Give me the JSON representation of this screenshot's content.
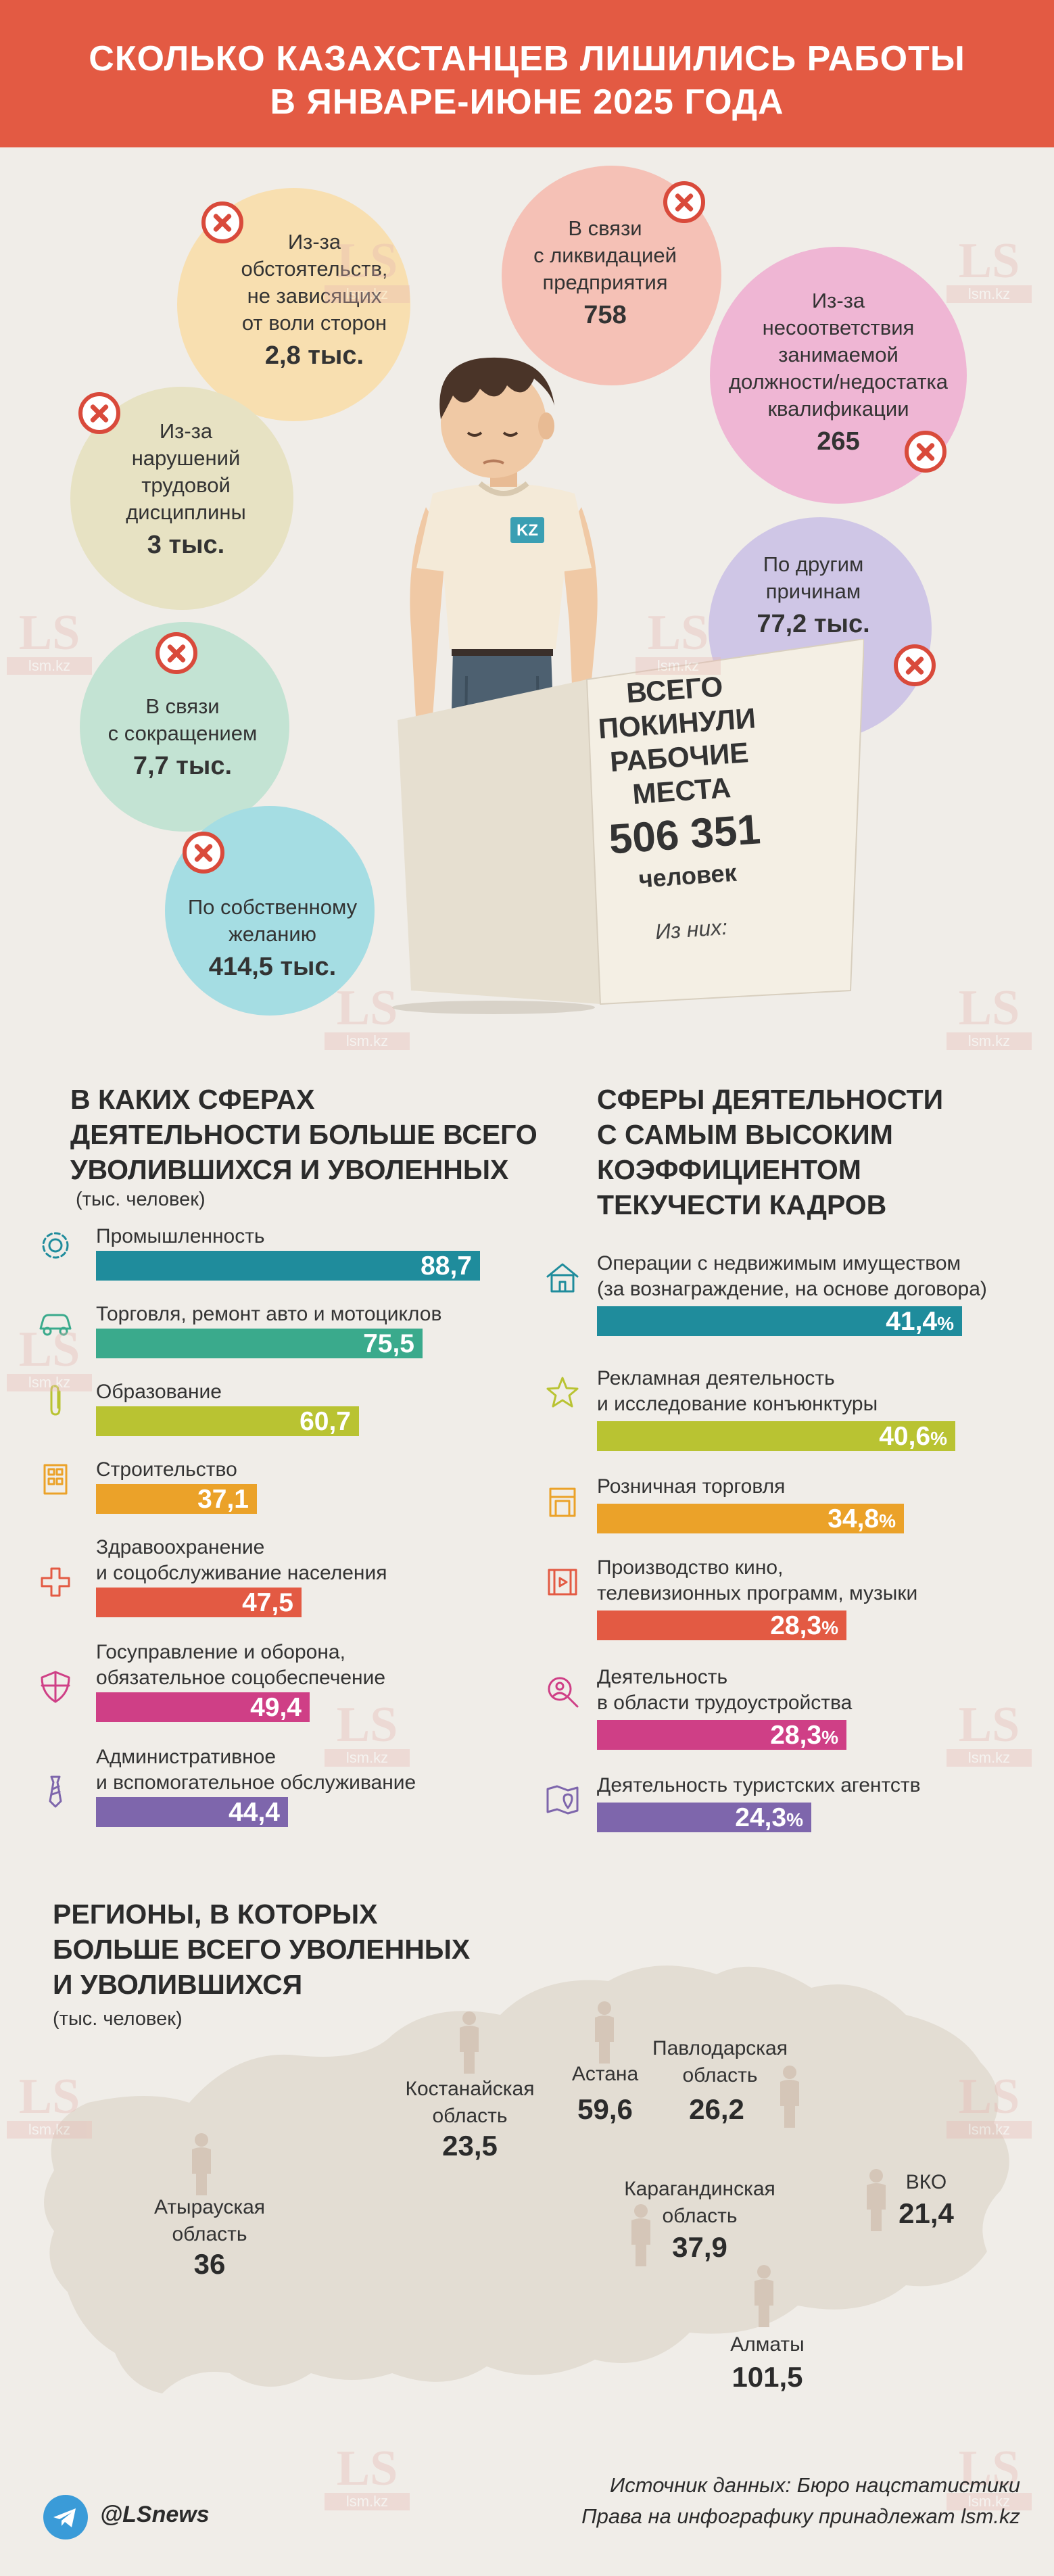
{
  "header": {
    "title_line1": "СКОЛЬКО КАЗАХСТАНЦЕВ ЛИШИЛИСЬ РАБОТЫ",
    "title_line2": "В ЯНВАРЕ-ИЮНЕ 2025 ГОДА"
  },
  "reasons": [
    {
      "id": "circumstances",
      "text": [
        "Из-за",
        "обстоятельств,",
        "не зависящих",
        "от воли сторон"
      ],
      "value": "2,8 тыс.",
      "color": "#f8dfb0"
    },
    {
      "id": "liquidation",
      "text": [
        "В связи",
        "с ликвидацией",
        "предприятия"
      ],
      "value": "758",
      "color": "#f5c1b6"
    },
    {
      "id": "mismatch",
      "text": [
        "Из-за",
        "несоответствия",
        "занимаемой",
        "должности/недостатка",
        "квалификации"
      ],
      "value": "265",
      "color": "#efb6d4"
    },
    {
      "id": "discipline",
      "text": [
        "Из-за",
        "нарушений",
        "трудовой",
        "дисциплины"
      ],
      "value": "3 тыс.",
      "color": "#e7e2c3"
    },
    {
      "id": "other",
      "text": [
        "По другим",
        "причинам"
      ],
      "value": "77,2 тыс.",
      "color": "#cfc6e6"
    },
    {
      "id": "reduction",
      "text": [
        "В связи",
        "с сокращением"
      ],
      "value": "7,7 тыс.",
      "color": "#c3e3d3"
    },
    {
      "id": "voluntary",
      "text": [
        "По собственному",
        "желанию"
      ],
      "value": "414,5 тыс.",
      "color": "#a5dde3"
    }
  ],
  "sign": {
    "lines": [
      "ВСЕГО",
      "ПОКИНУЛИ",
      "РАБОЧИЕ",
      "МЕСТА"
    ],
    "total": "506 351",
    "unit": "человек",
    "sub": "Из них:"
  },
  "person_badge": "KZ",
  "sectors": {
    "title": [
      "В КАКИХ СФЕРАХ",
      "ДЕЯТЕЛЬНОСТИ БОЛЬШЕ ВСЕГО",
      "УВОЛИВШИХСЯ И УВОЛЕННЫХ"
    ],
    "unit": "(тыс. человек)"
  },
  "turnover": {
    "title": [
      "СФЕРЫ ДЕЯТЕЛЬНОСТИ",
      "С САМЫМ ВЫСОКИМ",
      "КОЭФФИЦИЕНТОМ",
      "ТЕКУЧЕСТИ КАДРОВ"
    ]
  },
  "regions": {
    "title": [
      "РЕГИОНЫ, В КОТОРЫХ",
      "БОЛЬШЕ ВСЕГО УВОЛЕННЫХ",
      "И УВОЛИВШИХСЯ"
    ],
    "unit": "(тыс. человек)",
    "items": [
      {
        "name": [
          "Костанайская",
          "область"
        ],
        "value": "23,5"
      },
      {
        "name": [
          "Астана"
        ],
        "value": "59,6"
      },
      {
        "name": [
          "Павлодарская",
          "область"
        ],
        "value": "26,2"
      },
      {
        "name": [
          "Атырауская",
          "область"
        ],
        "value": "36"
      },
      {
        "name": [
          "Карагандинская",
          "область"
        ],
        "value": "37,9"
      },
      {
        "name": [
          "ВКО"
        ],
        "value": "21,4"
      },
      {
        "name": [
          "Алматы"
        ],
        "value": "101,5"
      }
    ]
  },
  "footer": {
    "source": "Источник данных: Бюро нацстатистики",
    "rights": "Права на инфографику принадлежат lsm.kz",
    "handle": "@LSnews"
  },
  "watermark": {
    "logo": "LS",
    "domain": "lsm.kz"
  },
  "chart_data": [
    {
      "type": "bar",
      "title": "В КАКИХ СФЕРАХ ДЕЯТЕЛЬНОСТИ БОЛЬШЕ ВСЕГО УВОЛИВШИХСЯ И УВОЛЕННЫХ",
      "ylabel": "(тыс. человек)",
      "orientation": "horizontal",
      "categories": [
        [
          "Промышленность"
        ],
        [
          "Торговля, ремонт авто и мотоциклов"
        ],
        [
          "Образование"
        ],
        [
          "Строительство"
        ],
        [
          "Здравоохранение",
          "и соцобслуживание населения"
        ],
        [
          "Госуправление и оборона,",
          "обязательное соцобеспечение"
        ],
        [
          "Административное",
          "и вспомогательное обслуживание"
        ]
      ],
      "values": [
        88.7,
        75.5,
        60.7,
        37.1,
        47.5,
        49.4,
        44.4
      ],
      "labels": [
        "88,7",
        "75,5",
        "60,7",
        "37,1",
        "47,5",
        "49,4",
        "44,4"
      ],
      "colors": [
        "#1f8c9c",
        "#3aaa8c",
        "#b9c332",
        "#eba229",
        "#e35a43",
        "#cf3f86",
        "#7e66ac"
      ],
      "icons": [
        "gear-icon",
        "car-icon",
        "paperclip-icon",
        "building-icon",
        "medical-cross-icon",
        "shield-icon",
        "tie-icon"
      ]
    },
    {
      "type": "bar",
      "title": "СФЕРЫ ДЕЯТЕЛЬНОСТИ С САМЫМ ВЫСОКИМ КОЭФФИЦИЕНТОМ ТЕКУЧЕСТИ КАДРОВ",
      "orientation": "horizontal",
      "categories": [
        [
          "Операции с недвижимым имуществом",
          "(за вознаграждение, на основе договора)"
        ],
        [
          "Рекламная деятельность",
          "и исследование конъюнктуры"
        ],
        [
          "Розничная торговля"
        ],
        [
          "Производство кино,",
          "телевизионных программ, музыки"
        ],
        [
          "Деятельность",
          "в области трудоустройства"
        ],
        [
          "Деятельность туристских агентств"
        ]
      ],
      "values": [
        41.4,
        40.6,
        34.8,
        28.3,
        28.3,
        24.3
      ],
      "labels": [
        "41,4",
        "40,6",
        "34,8",
        "28,3",
        "28,3",
        "24,3"
      ],
      "unit": "%",
      "colors": [
        "#1f8c9c",
        "#b9c332",
        "#eba229",
        "#e35a43",
        "#cf3f86",
        "#7e66ac"
      ],
      "icons": [
        "house-icon",
        "star-icon",
        "shop-icon",
        "film-icon",
        "search-person-icon",
        "map-pin-icon"
      ]
    }
  ]
}
